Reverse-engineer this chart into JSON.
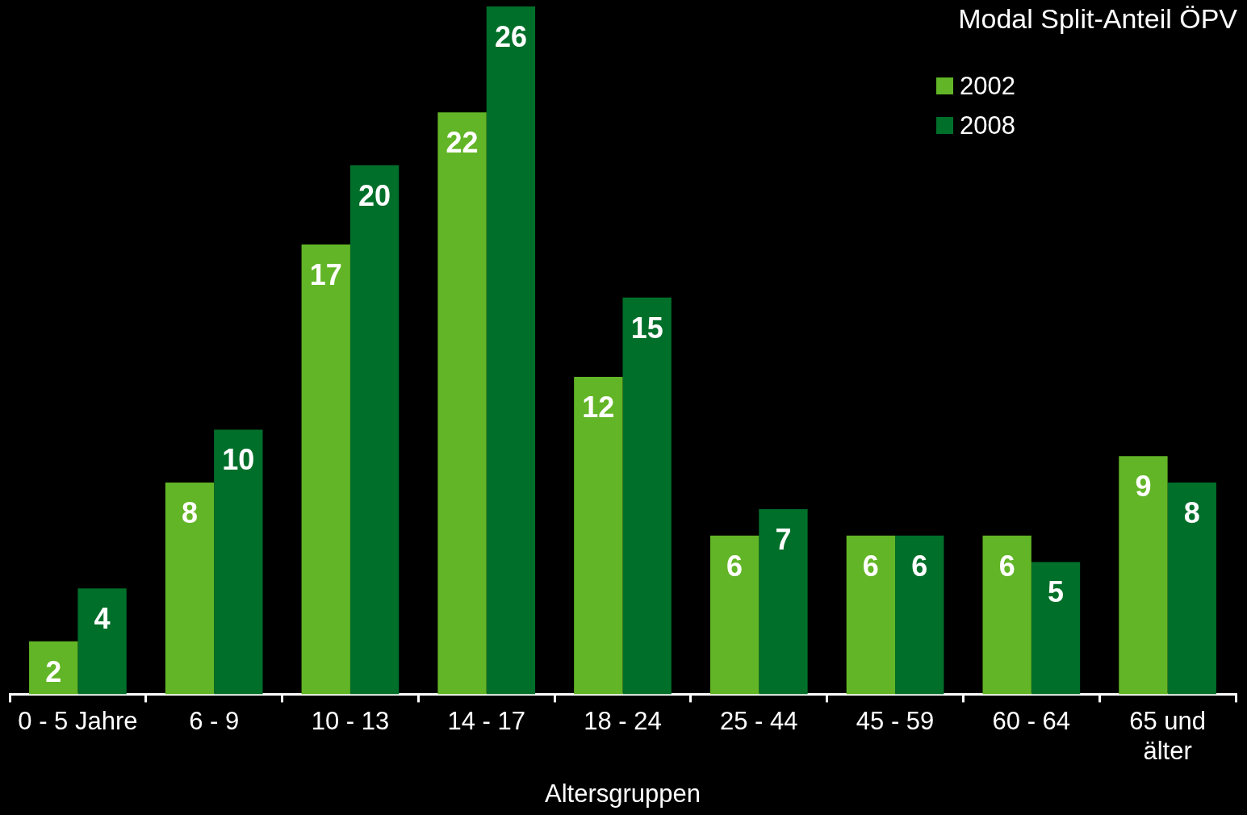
{
  "chart_data": {
    "type": "bar",
    "title": "Modal Split-Anteil ÖPV",
    "xlabel": "Altersgruppen",
    "categories": [
      "0 - 5 Jahre",
      "6 - 9",
      "10 - 13",
      "14 - 17",
      "18 - 24",
      "25 - 44",
      "45 - 59",
      "60 - 64",
      "65 und älter"
    ],
    "series": [
      {
        "name": "2002",
        "color": "#62b526",
        "values": [
          2,
          8,
          17,
          22,
          12,
          6,
          6,
          6,
          9
        ]
      },
      {
        "name": "2008",
        "color": "#006f2a",
        "values": [
          4,
          10,
          20,
          26,
          15,
          7,
          6,
          5,
          8
        ]
      }
    ],
    "tick_labels": "x",
    "data_labels": true,
    "legend": "top right",
    "grid": false
  }
}
